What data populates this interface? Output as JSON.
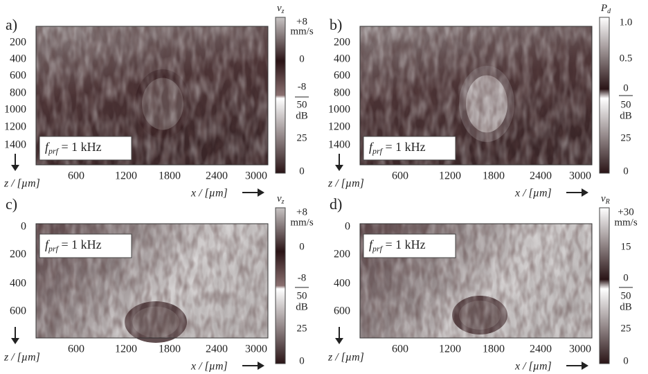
{
  "panels": [
    {
      "label": "a)",
      "colorbar_title": {
        "symbol": "v",
        "subscript": "z"
      },
      "colorbar_ticks": [
        "+8",
        "mm/s",
        "0",
        "-8",
        "50",
        "dB",
        "25",
        "0"
      ],
      "z_ticks": [
        "200",
        "400",
        "600",
        "800",
        "1000",
        "1200",
        "1400"
      ],
      "x_ticks": [
        "600",
        "1200",
        "1800",
        "2400",
        "3000"
      ],
      "z_label": "z / [µm]",
      "x_label": "x / [µm]",
      "annotation": {
        "symbol": "f",
        "subscript": "prf",
        "text": " = 1 kHz"
      }
    },
    {
      "label": "b)",
      "colorbar_title": {
        "symbol": "P",
        "subscript": "d"
      },
      "colorbar_ticks": [
        "1.0",
        "0.5",
        "0",
        "50",
        "dB",
        "25",
        "0"
      ],
      "z_ticks": [
        "200",
        "400",
        "600",
        "800",
        "1000",
        "1200",
        "1400"
      ],
      "x_ticks": [
        "600",
        "1200",
        "1800",
        "2400",
        "3000"
      ],
      "z_label": "z / [µm]",
      "x_label": "x / [µm]",
      "annotation": {
        "symbol": "f",
        "subscript": "prf",
        "text": " = 1 kHz"
      }
    },
    {
      "label": "c)",
      "colorbar_title": {
        "symbol": "v",
        "subscript": "z"
      },
      "colorbar_ticks": [
        "+8",
        "mm/s",
        "0",
        "-8",
        "50",
        "dB",
        "25",
        "0"
      ],
      "z_ticks": [
        "0",
        "200",
        "400",
        "600"
      ],
      "x_ticks": [
        "600",
        "1200",
        "1800",
        "2400",
        "3000"
      ],
      "z_label": "z / [µm]",
      "x_label": "x / [µm]",
      "annotation": {
        "symbol": "f",
        "subscript": "prf",
        "text": " = 1 kHz"
      }
    },
    {
      "label": "d)",
      "colorbar_title": {
        "symbol": "v",
        "subscript": "R"
      },
      "colorbar_ticks": [
        "+30",
        "mm/s",
        "15",
        "0",
        "50",
        "dB",
        "25",
        "0"
      ],
      "z_ticks": [
        "0",
        "200",
        "400",
        "600"
      ],
      "x_ticks": [
        "600",
        "1200",
        "1800",
        "2400",
        "3000"
      ],
      "z_label": "z / [µm]",
      "x_label": "x / [µm]",
      "annotation": {
        "symbol": "f",
        "subscript": "prf",
        "text": " = 1 kHz"
      }
    }
  ]
}
